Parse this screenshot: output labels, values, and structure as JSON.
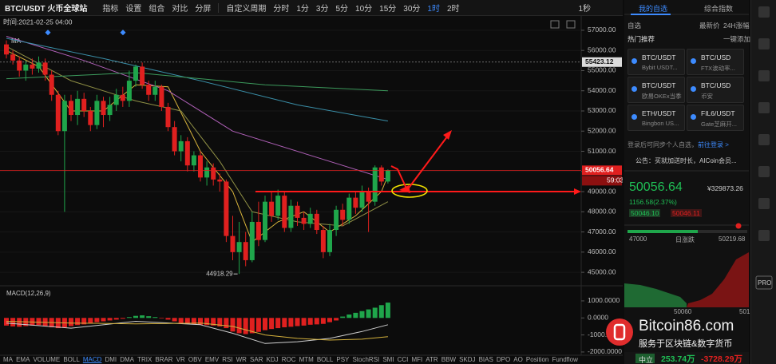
{
  "toolbar": {
    "symbol": "BTC/USDT 火币全球站",
    "tools": [
      "指标",
      "设置",
      "组合",
      "对比",
      "分屏"
    ],
    "custom_period": "自定义周期",
    "periods": [
      "分时",
      "1分",
      "3分",
      "5分",
      "10分",
      "15分",
      "30分",
      "1时",
      "2时"
    ],
    "refresh": "1秒"
  },
  "chart_data": {
    "type": "candlestick",
    "time_label": "时间:2021-02-25 04:00",
    "legend": "MA",
    "up_color": "#1fa64b",
    "down_color": "#e0201f",
    "ohlc": {
      "open": [
        56300,
        55800,
        55500,
        55000,
        55300,
        55100,
        55400,
        54800,
        53800,
        52000,
        53500,
        52800,
        53600,
        53000,
        52300,
        53500,
        52800,
        53300,
        53800,
        53500,
        54500,
        55200,
        54300,
        53800,
        54200,
        53200,
        52200,
        51000,
        51500,
        50300,
        50800,
        49700,
        50200,
        49600,
        49500,
        46800,
        46000,
        46500,
        45600,
        47500,
        46600,
        48500,
        47800,
        48800,
        47200,
        48300,
        47700,
        47400,
        47900,
        47100,
        46000,
        47100,
        48100,
        47600,
        48700,
        48200,
        49000,
        48500,
        50200,
        49500
      ],
      "close": [
        55800,
        55500,
        55000,
        55300,
        55100,
        55400,
        54800,
        53800,
        52000,
        53500,
        52800,
        53600,
        53000,
        52300,
        53500,
        52800,
        53300,
        53800,
        53500,
        54500,
        55200,
        54300,
        53800,
        54200,
        53200,
        52200,
        51000,
        51500,
        50300,
        50800,
        49700,
        50200,
        49600,
        49500,
        46800,
        46000,
        46500,
        45600,
        47500,
        46600,
        48500,
        47800,
        48800,
        47200,
        48300,
        47700,
        47400,
        47900,
        47100,
        46000,
        47100,
        48100,
        47600,
        48700,
        48200,
        49000,
        48500,
        50200,
        49500,
        50056.64
      ],
      "high": [
        56500,
        56000,
        55700,
        55500,
        55600,
        55700,
        55600,
        55000,
        54000,
        53800,
        53800,
        54000,
        53900,
        53200,
        53800,
        53700,
        53700,
        54100,
        54200,
        55000,
        55300,
        55400,
        54500,
        54500,
        54300,
        53400,
        52500,
        51800,
        51700,
        51000,
        51000,
        50500,
        50400,
        49900,
        49600,
        47800,
        47500,
        47000,
        48000,
        48500,
        48800,
        49000,
        49100,
        49000,
        48600,
        48500,
        48000,
        48200,
        48100,
        47300,
        47400,
        48300,
        48400,
        48900,
        49000,
        49300,
        49200,
        50300,
        50300,
        50100
      ],
      "low": [
        55600,
        55300,
        54700,
        54500,
        54800,
        54900,
        54500,
        53500,
        51800,
        48000,
        52500,
        52300,
        52700,
        52000,
        52100,
        52200,
        52500,
        53000,
        53200,
        53200,
        54200,
        54100,
        53500,
        53500,
        53000,
        52000,
        50800,
        50500,
        50000,
        50000,
        49500,
        49300,
        49300,
        49000,
        46500,
        45600,
        44918.29,
        45300,
        45500,
        46300,
        46500,
        47500,
        47600,
        47000,
        47000,
        47300,
        47100,
        47200,
        46900,
        45700,
        45800,
        46800,
        47300,
        47400,
        47900,
        48000,
        47000,
        48300,
        49300,
        49400
      ]
    },
    "ylim": [
      44450,
      57710
    ],
    "yticks": [
      {
        "value": 57000,
        "label": "57000.00"
      },
      {
        "value": 56000,
        "label": "56000.00"
      },
      {
        "value": 55000,
        "label": "55000.00"
      },
      {
        "value": 54000,
        "label": "54000.00"
      },
      {
        "value": 53000,
        "label": "53000.00"
      },
      {
        "value": 52000,
        "label": "52000.00"
      },
      {
        "value": 51000,
        "label": "51000.00"
      },
      {
        "value": 50000,
        "label": "50000.00"
      },
      {
        "value": 49000,
        "label": "49000.00"
      },
      {
        "value": 48000,
        "label": "48000.00"
      },
      {
        "value": 47000,
        "label": "47000.00"
      },
      {
        "value": 46000,
        "label": "46000.00"
      },
      {
        "value": 45000,
        "label": "45000.00"
      }
    ],
    "overlays": [
      {
        "color": "#d9b53c",
        "x": [
          0,
          5,
          10,
          15,
          20,
          25,
          30,
          35,
          38,
          42,
          46,
          50,
          54,
          58,
          59
        ],
        "values": [
          56000,
          55200,
          53000,
          53000,
          54300,
          54200,
          51000,
          49000,
          46500,
          47500,
          48000,
          47000,
          47800,
          49000,
          49800
        ]
      },
      {
        "color": "#8f8f45",
        "x": [
          0,
          10,
          20,
          27,
          33,
          38,
          45,
          52,
          59
        ],
        "values": [
          56200,
          54500,
          53500,
          53000,
          50500,
          48000,
          47500,
          47300,
          48500
        ]
      },
      {
        "color": "#b060b8",
        "x": [
          0,
          12,
          25,
          35,
          50,
          59
        ],
        "values": [
          56700,
          55500,
          54000,
          52000,
          50500,
          49600
        ]
      },
      {
        "color": "#3a8fa8",
        "x": [
          0,
          15,
          30,
          45,
          59
        ],
        "values": [
          56600,
          55600,
          54500,
          53300,
          52500
        ]
      },
      {
        "color": "#3c9a5c",
        "x": [
          0,
          20,
          40,
          59
        ],
        "values": [
          54600,
          54900,
          54300,
          54000
        ]
      }
    ],
    "price_lines": [
      {
        "value": 55423.12,
        "color": "#8a8a8a"
      },
      {
        "value": 50056.64,
        "color": "#e0201f",
        "countdown": "59:03"
      }
    ],
    "macd": {
      "title": "MACD(12,26,9)",
      "ylim": [
        -2190,
        1700
      ],
      "yticks": [
        {
          "value": 1000,
          "label": "1000.0000"
        },
        {
          "value": 0,
          "label": "0.0000"
        },
        {
          "value": -1000,
          "label": "-1000.0000"
        },
        {
          "value": -2000,
          "label": "-2000.0000"
        }
      ],
      "histogram": [
        -450,
        -500,
        -520,
        -480,
        -450,
        -420,
        -500,
        -550,
        -600,
        -550,
        -480,
        -420,
        -380,
        -300,
        -250,
        -200,
        -150,
        -100,
        -50,
        50,
        120,
        150,
        100,
        50,
        -30,
        -100,
        -200,
        -300,
        -350,
        -380,
        -400,
        -420,
        -450,
        -500,
        -600,
        -800,
        -900,
        -950,
        -900,
        -820,
        -720,
        -650,
        -600,
        -550,
        -520,
        -480,
        -450,
        -400,
        -380,
        -350,
        -250,
        -150,
        80,
        200,
        300,
        400,
        500,
        600,
        750,
        900
      ],
      "lines": [
        {
          "color": "#cfcfcf",
          "x": [
            0,
            10,
            20,
            30,
            35,
            40,
            45,
            50,
            55,
            59
          ],
          "values": [
            -300,
            -600,
            -200,
            -400,
            -900,
            -1500,
            -1400,
            -1200,
            -800,
            -400
          ]
        },
        {
          "color": "#d4b13c",
          "x": [
            0,
            10,
            20,
            30,
            35,
            40,
            45,
            50,
            55,
            59
          ],
          "values": [
            -200,
            -300,
            -350,
            -300,
            -500,
            -1000,
            -1200,
            -1300,
            -1250,
            -1100
          ]
        }
      ]
    },
    "indicator_tabs": [
      "MA",
      "EMA",
      "VOLUME",
      "BOLL",
      "MACD",
      "DMI",
      "DMA",
      "TRIX",
      "BRAR",
      "VR",
      "OBV",
      "EMV",
      "RSI",
      "WR",
      "SAR",
      "KDJ",
      "ROC",
      "MTM",
      "BOLL",
      "PSY",
      "StochRSI",
      "SMI",
      "CCI",
      "MFI",
      "ATR",
      "BBW",
      "SKDJ",
      "BIAS",
      "DPO",
      "AO",
      "Position",
      "Fundflow"
    ]
  },
  "right_panel": {
    "tabs": [
      "我的自选",
      "综合指数"
    ],
    "watch": "自选",
    "latest": "最新价",
    "change_24h": "24H涨幅",
    "hot": "热门推荐",
    "add_all": "一键添加",
    "cards": [
      {
        "pair": "BTC/USDT",
        "exchange": "Bybit USDT..."
      },
      {
        "pair": "BTC/USD",
        "exchange": "FTX波动率..."
      },
      {
        "pair": "BTC/USDT",
        "exchange": "欧易OKEx当季"
      },
      {
        "pair": "BTC/USD",
        "exchange": "币安"
      },
      {
        "pair": "ETH/USDT",
        "exchange": "Bingbon US..."
      },
      {
        "pair": "FIL6/USDT",
        "exchange": "Gate芝麻开..."
      }
    ],
    "login_hint": "登录后可同步个人自选，",
    "login_link": "前往登录 >",
    "notice": "公告：买就加送时长，AICoin会员...",
    "price": "50056.64",
    "cny": "¥329873.26",
    "change": "1156.58(2.37%)",
    "bid": "50046.10",
    "ask": "50046.11",
    "range_low": "47000",
    "range_label": "日涨跌",
    "range_high": "50219.68",
    "depth_left": "50060",
    "depth_right": "501",
    "sentiment": "中立",
    "flow_in": "253.74万",
    "flow_out": "-3728.29万"
  },
  "sidebar": {
    "pro": "PRO"
  },
  "watermark": {
    "site": "Bitcoin86.com",
    "slogan": "服务于区块链&数字货币"
  }
}
